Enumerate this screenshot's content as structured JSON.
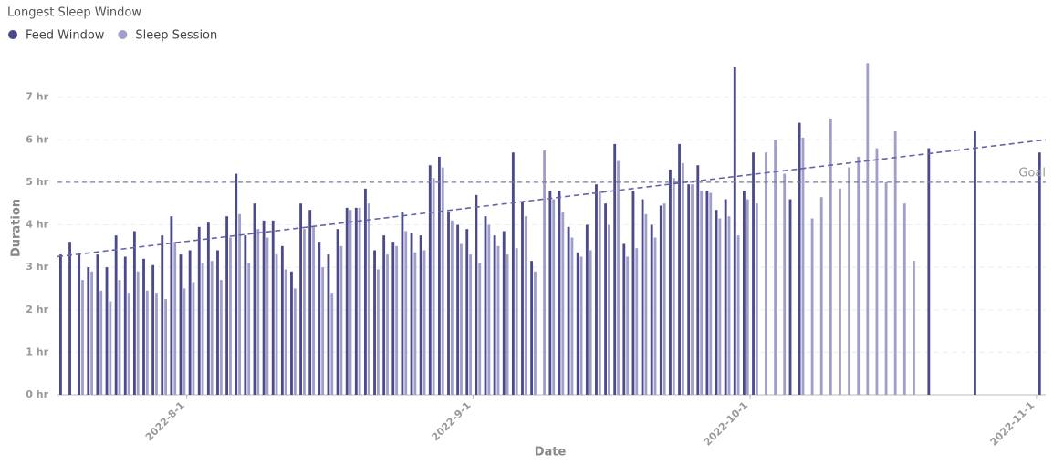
{
  "chart_data": {
    "type": "bar",
    "title": "Longest Sleep Window",
    "x_label": "Date",
    "y_label": "Duration",
    "x": [
      "2022-7-18",
      "2022-7-19",
      "2022-7-20",
      "2022-7-21",
      "2022-7-22",
      "2022-7-23",
      "2022-7-24",
      "2022-7-25",
      "2022-7-26",
      "2022-7-27",
      "2022-7-28",
      "2022-7-29",
      "2022-7-30",
      "2022-7-31",
      "2022-8-1",
      "2022-8-2",
      "2022-8-3",
      "2022-8-4",
      "2022-8-5",
      "2022-8-6",
      "2022-8-7",
      "2022-8-8",
      "2022-8-9",
      "2022-8-10",
      "2022-8-11",
      "2022-8-12",
      "2022-8-13",
      "2022-8-14",
      "2022-8-15",
      "2022-8-16",
      "2022-8-17",
      "2022-8-18",
      "2022-8-19",
      "2022-8-20",
      "2022-8-21",
      "2022-8-22",
      "2022-8-23",
      "2022-8-24",
      "2022-8-25",
      "2022-8-26",
      "2022-8-27",
      "2022-8-28",
      "2022-8-29",
      "2022-8-30",
      "2022-8-31",
      "2022-9-1",
      "2022-9-2",
      "2022-9-3",
      "2022-9-4",
      "2022-9-5",
      "2022-9-6",
      "2022-9-7",
      "2022-9-8",
      "2022-9-9",
      "2022-9-10",
      "2022-9-11",
      "2022-9-12",
      "2022-9-13",
      "2022-9-14",
      "2022-9-15",
      "2022-9-16",
      "2022-9-17",
      "2022-9-18",
      "2022-9-19",
      "2022-9-20",
      "2022-9-21",
      "2022-9-22",
      "2022-9-23",
      "2022-9-24",
      "2022-9-25",
      "2022-9-26",
      "2022-9-27",
      "2022-9-28",
      "2022-9-29",
      "2022-9-30",
      "2022-10-1",
      "2022-10-2",
      "2022-10-3",
      "2022-10-4",
      "2022-10-5",
      "2022-10-6",
      "2022-10-7",
      "2022-10-8",
      "2022-10-9",
      "2022-10-10",
      "2022-10-11",
      "2022-10-12",
      "2022-10-13",
      "2022-10-14",
      "2022-10-15",
      "2022-10-16",
      "2022-10-17",
      "2022-10-18",
      "2022-10-20",
      "2022-10-25",
      "2022-11-1"
    ],
    "series": [
      {
        "name": "Feed Window",
        "color": "#4b4a8a",
        "values": [
          3.3,
          3.6,
          3.3,
          3.0,
          3.3,
          3.0,
          3.75,
          3.25,
          3.85,
          3.2,
          3.05,
          3.75,
          4.2,
          3.3,
          3.4,
          3.95,
          4.05,
          3.4,
          4.2,
          5.2,
          3.75,
          4.5,
          4.1,
          4.1,
          3.5,
          2.9,
          4.5,
          4.35,
          3.6,
          3.3,
          3.9,
          4.4,
          4.4,
          4.85,
          3.4,
          3.75,
          3.6,
          4.3,
          3.8,
          3.75,
          5.4,
          5.6,
          4.3,
          4.0,
          3.9,
          4.7,
          4.2,
          3.75,
          3.85,
          5.7,
          4.55,
          3.15,
          null,
          4.8,
          4.8,
          3.95,
          3.35,
          4.0,
          4.95,
          4.5,
          5.9,
          3.55,
          4.8,
          4.6,
          4.0,
          4.45,
          5.3,
          5.9,
          4.95,
          5.4,
          4.8,
          4.35,
          4.6,
          7.7,
          4.8,
          5.7,
          null,
          null,
          null,
          4.6,
          6.4,
          null,
          null,
          null,
          null,
          null,
          null,
          null,
          null,
          null,
          null,
          null,
          null,
          5.8,
          6.2,
          5.7
        ]
      },
      {
        "name": "Sleep Session",
        "color": "#a09fcb",
        "values": [
          null,
          null,
          2.7,
          2.9,
          2.45,
          2.2,
          2.7,
          2.4,
          2.9,
          2.45,
          2.4,
          2.25,
          3.6,
          2.5,
          2.65,
          3.1,
          3.15,
          2.7,
          3.7,
          4.25,
          3.1,
          3.9,
          3.7,
          3.3,
          2.95,
          2.5,
          3.9,
          3.95,
          3.0,
          2.4,
          3.5,
          4.35,
          4.4,
          4.5,
          2.95,
          3.3,
          3.5,
          3.85,
          3.35,
          3.4,
          5.1,
          5.35,
          4.1,
          3.55,
          3.3,
          3.1,
          4.0,
          3.5,
          3.3,
          3.45,
          4.2,
          2.9,
          5.75,
          4.6,
          4.3,
          3.7,
          3.25,
          3.4,
          4.8,
          4.0,
          5.5,
          3.25,
          3.45,
          4.25,
          3.7,
          4.5,
          5.1,
          5.45,
          4.95,
          4.8,
          4.75,
          4.15,
          4.2,
          3.75,
          4.6,
          4.5,
          5.7,
          6.0,
          5.2,
          null,
          6.05,
          4.15,
          4.65,
          6.5,
          4.85,
          5.35,
          5.6,
          7.8,
          5.8,
          5.0,
          6.2,
          4.5,
          3.15,
          null,
          null,
          null
        ]
      }
    ],
    "xlim": [
      "2022-7-18",
      "2022-11-2"
    ],
    "xticks": [
      "2022-8-1",
      "2022-9-1",
      "2022-10-1",
      "2022-11-1"
    ],
    "ylim": [
      0,
      8
    ],
    "yticks": [
      {
        "value": 0,
        "label": "0 hr"
      },
      {
        "value": 1,
        "label": "1 hr"
      },
      {
        "value": 2,
        "label": "2 hr"
      },
      {
        "value": 3,
        "label": "3 hr"
      },
      {
        "value": 4,
        "label": "4 hr"
      },
      {
        "value": 5,
        "label": "5 hr"
      },
      {
        "value": 6,
        "label": "6 hr"
      },
      {
        "value": 7,
        "label": "7 hr"
      }
    ],
    "grid": true,
    "goal": {
      "value": 5,
      "label": "Goal"
    },
    "trend_line": {
      "x": [
        "2022-7-18",
        "2022-11-2"
      ],
      "values": [
        3.25,
        6.0
      ]
    }
  }
}
